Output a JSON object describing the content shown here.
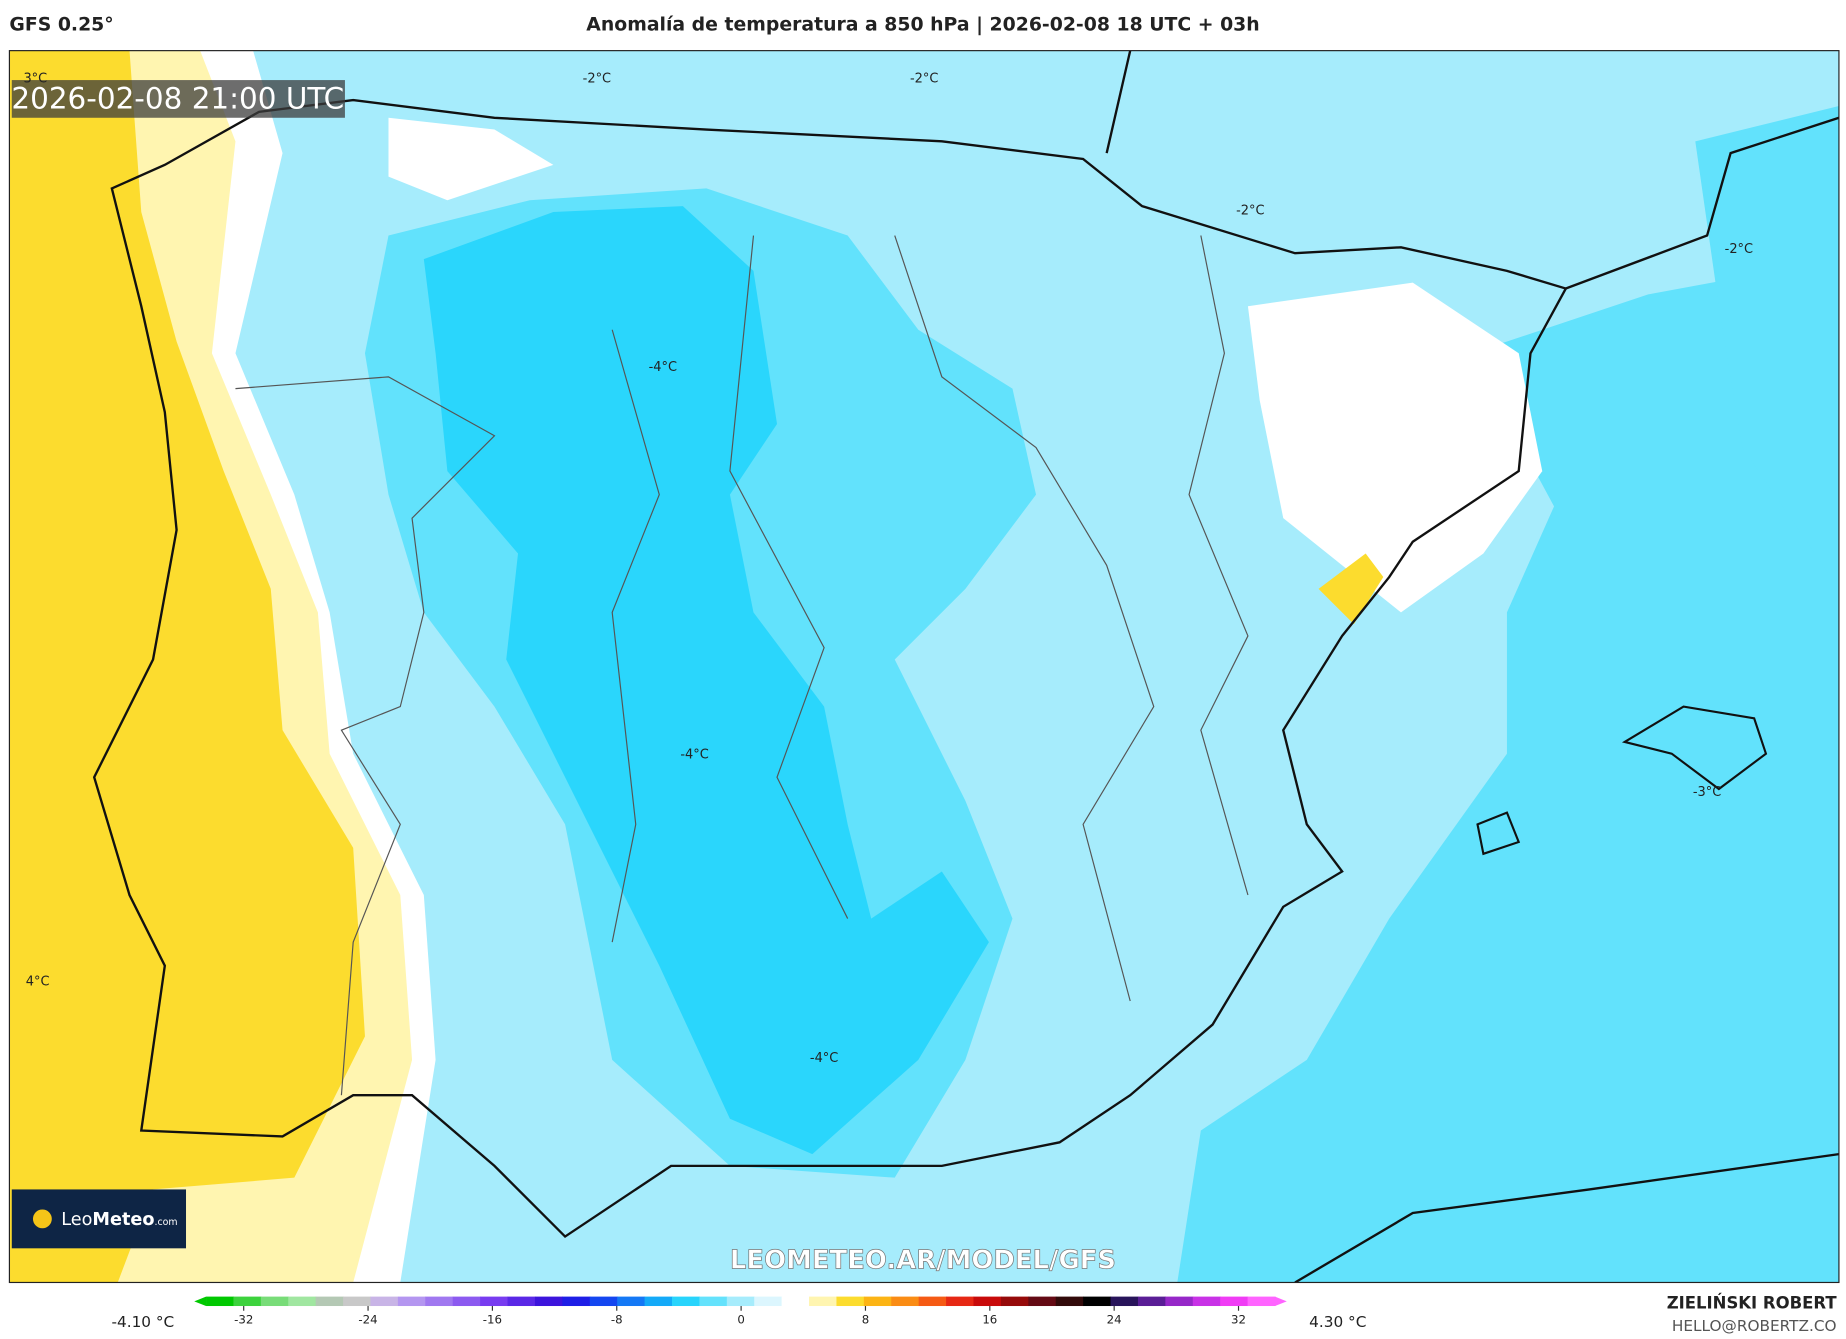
{
  "header": {
    "model": "GFS 0.25°",
    "title": "Anomalía de temperatura a 850 hPa | 2026-02-08 18 UTC + 03h"
  },
  "map": {
    "timestamp": "2026-02-08 21:00 UTC",
    "contour_labels": [
      "-2°C",
      "-2°C",
      "-2°C",
      "-2°C",
      "-4°C",
      "-4°C",
      "-4°C",
      "-3°C",
      "3°C",
      "4°C"
    ]
  },
  "logo": {
    "name_leo": "Leo",
    "name_meteo": "Meteo",
    "suffix": ".com"
  },
  "watermark": "LEOMETEO.AR/MODEL/GFS",
  "colorbar": {
    "min_label": "-4.10 °C",
    "max_label": "4.30 °C",
    "ticks": [
      -32,
      -24,
      -16,
      -8,
      0,
      8,
      16,
      24,
      32
    ],
    "colors": [
      "#00c800",
      "#3cd23c",
      "#78dc78",
      "#a0e6a0",
      "#b4c8b4",
      "#c8c8c8",
      "#c8b4e6",
      "#b496f0",
      "#a078f0",
      "#8c5af0",
      "#783cf0",
      "#5a28e6",
      "#3c14dc",
      "#1e1ee6",
      "#1446f0",
      "#1478f5",
      "#14aaf8",
      "#28d4fc",
      "#64e2fc",
      "#a6ecfc",
      "#dcf6fe",
      "#ffffff",
      "#fff5b0",
      "#fcdc2e",
      "#fcb414",
      "#fa8c14",
      "#f55a14",
      "#e62814",
      "#c80a0a",
      "#960a0a",
      "#640a14",
      "#320a0a",
      "#000000",
      "#28145a",
      "#5a1e96",
      "#9628c8",
      "#c832e6",
      "#f03cf5",
      "#ff64ff"
    ]
  },
  "credit": {
    "author": "ZIELIŃSKI ROBERT",
    "email": "HELLO@ROBERTZ.CO"
  }
}
